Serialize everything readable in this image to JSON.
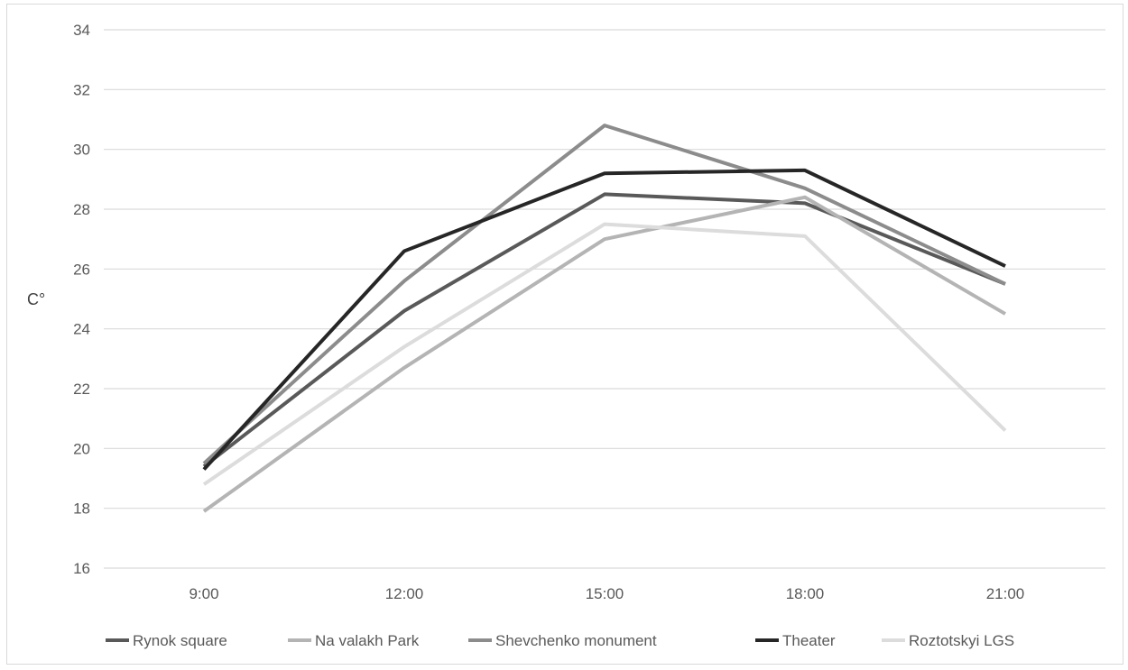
{
  "chart_data": {
    "type": "line",
    "title": "",
    "xlabel": "",
    "ylabel": "C°",
    "categories": [
      "9:00",
      "12:00",
      "15:00",
      "18:00",
      "21:00"
    ],
    "ylim": [
      16,
      34
    ],
    "yticks": [
      16,
      18,
      20,
      22,
      24,
      26,
      28,
      30,
      32,
      34
    ],
    "grid": true,
    "legend_position": "bottom",
    "series": [
      {
        "name": "Rynok square",
        "values": [
          19.4,
          24.6,
          28.5,
          28.2,
          25.5
        ],
        "color": "#595959",
        "width": 4
      },
      {
        "name": "Na valakh Park",
        "values": [
          17.9,
          22.7,
          27.0,
          28.4,
          24.5
        ],
        "color": "#b4b4b4",
        "width": 4
      },
      {
        "name": "Shevchenko monument",
        "values": [
          19.5,
          25.6,
          30.8,
          28.7,
          25.5
        ],
        "color": "#8c8c8c",
        "width": 4
      },
      {
        "name": "Theater",
        "values": [
          19.3,
          26.6,
          29.2,
          29.3,
          26.1
        ],
        "color": "#262626",
        "width": 4
      },
      {
        "name": "Roztotskyi LGS",
        "values": [
          18.8,
          23.4,
          27.5,
          27.1,
          20.6
        ],
        "color": "#dcdcdc",
        "width": 4
      }
    ]
  }
}
